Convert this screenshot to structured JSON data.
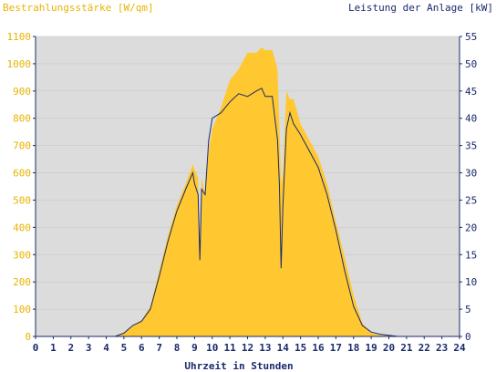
{
  "chart_data": {
    "type": "area",
    "left_axis_title": "Bestrahlungsstärke [W/qm]",
    "right_axis_title": "Leistung der Anlage [kW]",
    "xlabel": "Uhrzeit in Stunden",
    "xlim": [
      0,
      24
    ],
    "x_ticks": [
      "0",
      "1",
      "2",
      "3",
      "4",
      "5",
      "6",
      "7",
      "8",
      "9",
      "10",
      "11",
      "12",
      "13",
      "14",
      "15",
      "16",
      "17",
      "18",
      "19",
      "20",
      "21",
      "22",
      "23",
      "24"
    ],
    "y_left_lim": [
      0,
      1100
    ],
    "y_left_ticks": [
      "0",
      "100",
      "200",
      "300",
      "400",
      "500",
      "600",
      "700",
      "800",
      "900",
      "1000",
      "1100"
    ],
    "y_right_lim": [
      0,
      55
    ],
    "y_right_ticks": [
      "0",
      "5",
      "10",
      "15",
      "20",
      "25",
      "30",
      "35",
      "40",
      "45",
      "50",
      "55"
    ],
    "colors": {
      "irradiance_fill": "#FFC830",
      "power_line": "#1A2A6C",
      "plot_background": "#DCDCDC",
      "left_axis_text": "#E8B400",
      "right_axis_text": "#1A2A6C",
      "grid": "#C4C4C4"
    },
    "series": [
      {
        "axis": "left",
        "style": "area",
        "x": [
          0,
          4.5,
          5,
          5.5,
          6,
          6.5,
          7,
          7.5,
          8,
          8.5,
          8.9,
          9.2,
          9.3,
          9.4,
          9.6,
          9.8,
          10,
          10.5,
          11,
          11.5,
          12,
          12.5,
          12.8,
          13,
          13.4,
          13.7,
          13.9,
          14,
          14.2,
          14.4,
          14.6,
          15,
          15.5,
          16,
          16.5,
          17,
          17.5,
          18,
          18.5,
          19,
          19.5,
          20,
          20.5,
          21,
          24
        ],
        "values": [
          0,
          0,
          15,
          40,
          60,
          110,
          240,
          370,
          480,
          560,
          630,
          580,
          300,
          580,
          520,
          680,
          760,
          840,
          940,
          980,
          1040,
          1040,
          1060,
          1050,
          1050,
          980,
          560,
          600,
          900,
          870,
          870,
          780,
          720,
          660,
          560,
          420,
          290,
          150,
          50,
          12,
          5,
          2,
          0,
          0,
          0
        ]
      },
      {
        "axis": "right",
        "style": "line",
        "x": [
          0,
          4.5,
          5,
          5.5,
          6,
          6.5,
          7,
          7.5,
          8,
          8.5,
          8.9,
          9,
          9.2,
          9.3,
          9.4,
          9.6,
          9.8,
          10,
          10.5,
          11,
          11.5,
          12,
          12.5,
          12.8,
          13,
          13.4,
          13.7,
          13.8,
          13.9,
          14,
          14.2,
          14.4,
          14.6,
          15,
          15.5,
          16,
          16.5,
          17,
          17.5,
          18,
          18.5,
          19,
          19.5,
          20,
          20.5,
          21,
          24
        ],
        "values": [
          0,
          0,
          0.6,
          2,
          2.8,
          5,
          11,
          17.5,
          23,
          27,
          30,
          28,
          26,
          14,
          27,
          26,
          36,
          40,
          41,
          43,
          44.5,
          44,
          45,
          45.5,
          44,
          44,
          36,
          28,
          12.5,
          24,
          38,
          41,
          39,
          37,
          34,
          31,
          26,
          19.5,
          12,
          5.5,
          2,
          0.8,
          0.4,
          0.2,
          0,
          0,
          0
        ]
      }
    ]
  }
}
